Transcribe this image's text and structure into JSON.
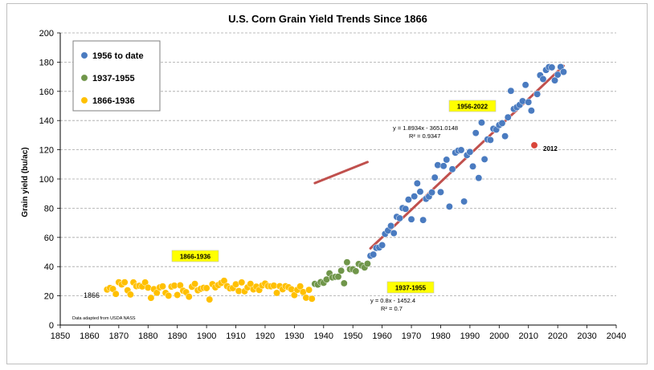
{
  "chart_data": {
    "type": "scatter",
    "title": "U.S. Corn Grain Yield Trends Since 1866",
    "xlabel": "",
    "ylabel": "Grain yield (bu/ac)",
    "xlim": [
      1850,
      2040
    ],
    "ylim": [
      0,
      200
    ],
    "xticks": [
      1850,
      1860,
      1870,
      1880,
      1890,
      1900,
      1910,
      1920,
      1930,
      1940,
      1950,
      1960,
      1970,
      1980,
      1990,
      2000,
      2010,
      2020,
      2030,
      2040
    ],
    "yticks": [
      0,
      20,
      40,
      60,
      80,
      100,
      120,
      140,
      160,
      180,
      200
    ],
    "grid": "horizontal dashed",
    "legend_position": "top-left",
    "source_note": "Data adapted from USDA NASS",
    "start_label": "1866",
    "series": [
      {
        "name": "1866-1936",
        "color": "#ffc000",
        "x": [
          1866,
          1867,
          1868,
          1869,
          1870,
          1871,
          1872,
          1873,
          1874,
          1875,
          1876,
          1877,
          1878,
          1879,
          1880,
          1881,
          1882,
          1883,
          1884,
          1885,
          1886,
          1887,
          1888,
          1889,
          1890,
          1891,
          1892,
          1893,
          1894,
          1895,
          1896,
          1897,
          1898,
          1899,
          1900,
          1901,
          1902,
          1903,
          1904,
          1905,
          1906,
          1907,
          1908,
          1909,
          1910,
          1911,
          1912,
          1913,
          1914,
          1915,
          1916,
          1917,
          1918,
          1919,
          1920,
          1921,
          1922,
          1923,
          1924,
          1925,
          1926,
          1927,
          1928,
          1929,
          1930,
          1931,
          1932,
          1933,
          1934,
          1935,
          1936
        ],
        "y": [
          24.3,
          25.4,
          24.7,
          21.3,
          29.3,
          27.8,
          29.3,
          23.8,
          20.9,
          29.2,
          26.6,
          26.9,
          26.4,
          29.2,
          25.6,
          18.6,
          24.6,
          22.1,
          25.8,
          26.5,
          22.0,
          20.1,
          26.3,
          27.0,
          20.6,
          27.2,
          23.5,
          22.5,
          19.4,
          26.2,
          28.2,
          23.8,
          24.8,
          25.5,
          25.3,
          17.5,
          28.0,
          25.8,
          27.4,
          28.8,
          30.3,
          26.6,
          25.1,
          25.3,
          27.9,
          23.3,
          29.2,
          23.1,
          25.8,
          28.2,
          24.4,
          26.3,
          24.0,
          27.1,
          28.4,
          26.7,
          26.5,
          27.0,
          22.0,
          26.6,
          24.5,
          26.6,
          25.9,
          24.5,
          20.5,
          24.1,
          26.5,
          22.6,
          18.7,
          24.1,
          18.0
        ]
      },
      {
        "name": "1937-1955",
        "color": "#70964a",
        "x": [
          1937,
          1938,
          1939,
          1940,
          1941,
          1942,
          1943,
          1944,
          1945,
          1946,
          1947,
          1948,
          1949,
          1950,
          1951,
          1952,
          1953,
          1954,
          1955
        ],
        "y": [
          28.2,
          27.7,
          29.4,
          28.9,
          31.2,
          35.4,
          32.6,
          33.0,
          33.1,
          37.2,
          28.6,
          43.0,
          38.2,
          38.2,
          36.9,
          41.8,
          40.7,
          39.4,
          42.0
        ]
      },
      {
        "name": "1956 to date",
        "color": "#4a7bc0",
        "x": [
          1956,
          1957,
          1958,
          1959,
          1960,
          1961,
          1962,
          1963,
          1964,
          1965,
          1966,
          1967,
          1968,
          1969,
          1970,
          1971,
          1972,
          1973,
          1974,
          1975,
          1976,
          1977,
          1978,
          1979,
          1980,
          1981,
          1982,
          1983,
          1984,
          1985,
          1986,
          1987,
          1988,
          1989,
          1990,
          1991,
          1992,
          1993,
          1994,
          1995,
          1996,
          1997,
          1998,
          1999,
          2000,
          2001,
          2002,
          2003,
          2004,
          2005,
          2006,
          2007,
          2008,
          2009,
          2010,
          2011,
          2013,
          2014,
          2015,
          2016,
          2017,
          2018,
          2019,
          2020,
          2021,
          2022
        ],
        "y": [
          47.4,
          48.3,
          52.8,
          53.1,
          54.7,
          62.4,
          64.7,
          67.9,
          62.9,
          74.1,
          73.1,
          80.1,
          79.5,
          85.9,
          72.4,
          88.1,
          97.0,
          91.3,
          71.9,
          86.4,
          88.0,
          90.8,
          101.0,
          109.5,
          91.0,
          108.9,
          113.2,
          81.1,
          106.7,
          118.0,
          119.4,
          119.8,
          84.6,
          116.3,
          118.5,
          108.6,
          131.5,
          100.7,
          138.6,
          113.5,
          127.1,
          126.7,
          134.4,
          133.8,
          136.9,
          138.2,
          129.3,
          142.2,
          160.3,
          147.9,
          149.1,
          150.7,
          153.3,
          164.4,
          152.6,
          146.8,
          158.1,
          171.0,
          168.4,
          174.6,
          176.6,
          176.4,
          167.5,
          171.4,
          176.7,
          173.3
        ]
      },
      {
        "name": "2012",
        "color": "#d9453a",
        "x": [
          2012
        ],
        "y": [
          123.1
        ]
      }
    ],
    "trendlines": [
      {
        "range": [
          1937,
          1955
        ],
        "slope": 0.8,
        "intercept": -1452.4
      },
      {
        "range": [
          1956,
          2022
        ],
        "slope": 1.8934,
        "intercept": -3651.0148
      }
    ]
  },
  "legend": [
    {
      "label": "1956 to date",
      "color": "#4a7bc0"
    },
    {
      "label": "1937-1955",
      "color": "#70964a"
    },
    {
      "label": "1866-1936",
      "color": "#ffc000"
    }
  ],
  "annotations": {
    "box_1866": "1866-1936",
    "box_1937": "1937-1955",
    "box_1956": "1956-2022",
    "eq_1937_line1": "y = 0.8x - 1452.4",
    "eq_1937_line2": "R² = 0.7",
    "eq_1956_line1": "y = 1.8934x - 3651.0148",
    "eq_1956_line2": "R² = 0.9347",
    "label_2012": "2012"
  }
}
